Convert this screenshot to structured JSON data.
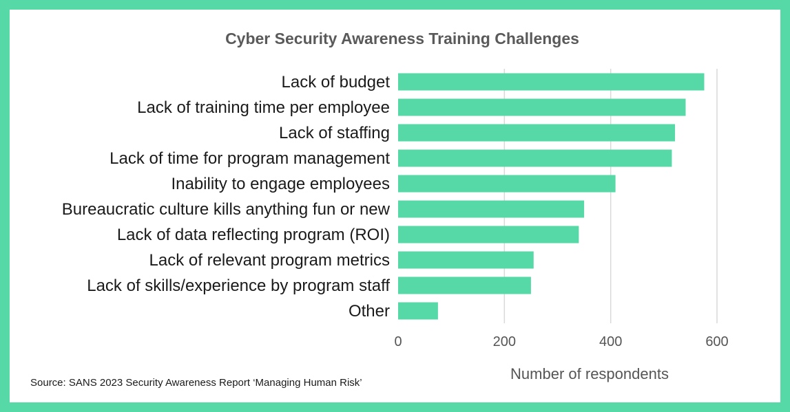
{
  "colors": {
    "frame": "#56d9a6",
    "bar": "#56d9a6",
    "grid": "#d9d9d9"
  },
  "chart_data": {
    "type": "bar",
    "orientation": "horizontal",
    "title": "Cyber Security Awareness Training Challenges",
    "xlabel": "Number of respondents",
    "ylabel": "",
    "xlim": [
      0,
      600
    ],
    "xticks": [
      0,
      200,
      400,
      600
    ],
    "grid": true,
    "categories": [
      "Lack of budget",
      "Lack of training time per employee",
      "Lack of staffing",
      "Lack of time for program management",
      "Inability to engage employees",
      "Bureaucratic culture kills anything fun or new",
      "Lack of data reflecting program (ROI)",
      "Lack of relevant program metrics",
      "Lack of skills/experience by program staff",
      "Other"
    ],
    "values": [
      576,
      541,
      521,
      515,
      409,
      350,
      340,
      255,
      250,
      75
    ]
  },
  "source": "Source: SANS 2023 Security Awareness Report ‘Managing Human Risk’"
}
